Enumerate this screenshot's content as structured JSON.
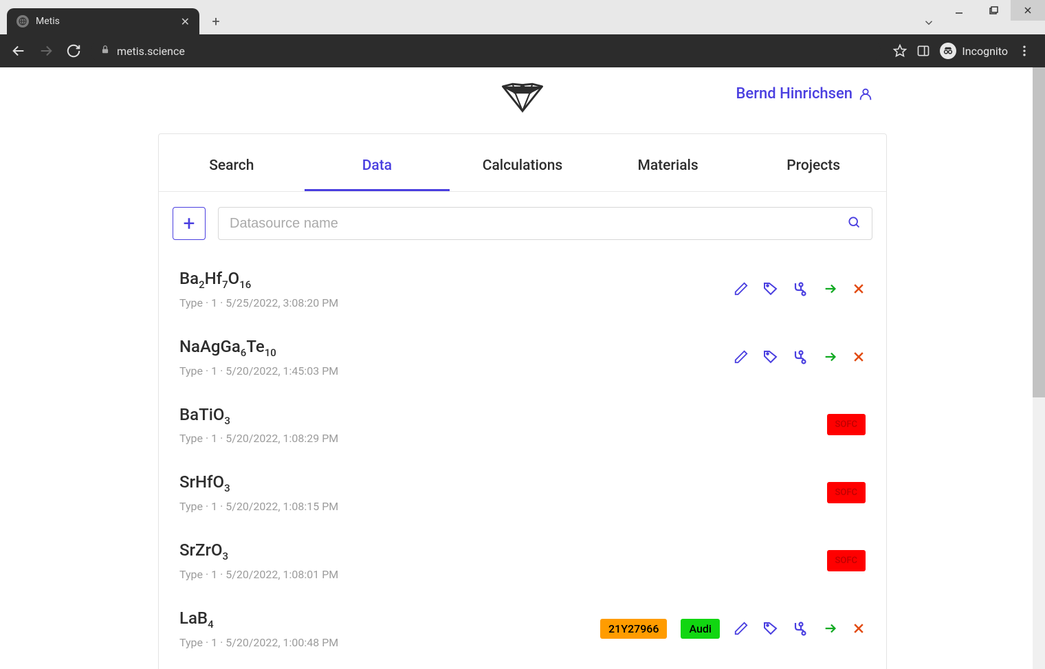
{
  "browser": {
    "tab_title": "Metis",
    "url": "metis.science",
    "incognito_label": "Incognito"
  },
  "header": {
    "user_name": "Bernd Hinrichsen"
  },
  "tabs": {
    "items": [
      {
        "label": "Search",
        "active": false
      },
      {
        "label": "Data",
        "active": true
      },
      {
        "label": "Calculations",
        "active": false
      },
      {
        "label": "Materials",
        "active": false
      },
      {
        "label": "Projects",
        "active": false
      }
    ]
  },
  "toolbar": {
    "search_placeholder": "Datasource name"
  },
  "rows": [
    {
      "formula_html": "Ba<sub>2</sub>Hf<sub>7</sub>O<sub>16</sub>",
      "meta": "Type · 1 · 5/25/2022, 3:08:20 PM",
      "badges": [],
      "actions": true
    },
    {
      "formula_html": "NaAgGa<sub>6</sub>Te<sub>10</sub>",
      "meta": "Type · 1 · 5/20/2022, 1:45:03 PM",
      "badges": [],
      "actions": true
    },
    {
      "formula_html": "BaTiO<sub>3</sub>",
      "meta": "Type · 1 · 5/20/2022, 1:08:29 PM",
      "badges": [
        {
          "text": "SOFC",
          "cls": "sofc"
        }
      ],
      "actions": false
    },
    {
      "formula_html": "SrHfO<sub>3</sub>",
      "meta": "Type · 1 · 5/20/2022, 1:08:15 PM",
      "badges": [
        {
          "text": "SOFC",
          "cls": "sofc"
        }
      ],
      "actions": false
    },
    {
      "formula_html": "SrZrO<sub>3</sub>",
      "meta": "Type · 1 · 5/20/2022, 1:08:01 PM",
      "badges": [
        {
          "text": "SOFC",
          "cls": "sofc"
        }
      ],
      "actions": false
    },
    {
      "formula_html": "LaB<sub>4</sub>",
      "meta": "Type · 1 · 5/20/2022, 1:00:48 PM",
      "badges": [
        {
          "text": "21Y27966",
          "cls": "orange"
        },
        {
          "text": "Audi",
          "cls": "green"
        }
      ],
      "actions": true
    }
  ],
  "colors": {
    "accent": "#4a3fe0",
    "go": "#11aa22",
    "delete": "#e24b11",
    "badge_red": "#ff0000",
    "badge_orange": "#ff9c00",
    "badge_green": "#11d611"
  }
}
